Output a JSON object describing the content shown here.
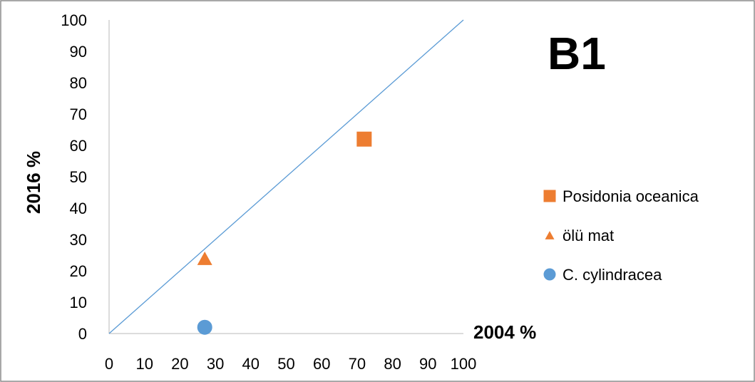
{
  "chart_data": {
    "type": "scatter",
    "title": "B1",
    "xlabel": "2004 %",
    "ylabel": "2016 %",
    "xlim": [
      0,
      100
    ],
    "ylim": [
      0,
      100
    ],
    "x_ticks": [
      "0",
      "10",
      "20",
      "30",
      "40",
      "50",
      "60",
      "70",
      "80",
      "90",
      "100"
    ],
    "y_ticks": [
      "0",
      "10",
      "20",
      "30",
      "40",
      "50",
      "60",
      "70",
      "80",
      "90",
      "100"
    ],
    "grid": false,
    "legend_position": "right",
    "reference_line": {
      "from": [
        0,
        0
      ],
      "to": [
        100,
        100
      ],
      "color": "#5B9BD5"
    },
    "series": [
      {
        "name": "Posidonia oceanica",
        "marker": "square",
        "color": "#ED7D31",
        "points": [
          {
            "x": 72,
            "y": 62
          }
        ]
      },
      {
        "name": "ölü mat",
        "marker": "triangle",
        "color": "#ED7D31",
        "points": [
          {
            "x": 27,
            "y": 24
          }
        ]
      },
      {
        "name": "C. cylindracea",
        "marker": "circle",
        "color": "#5B9BD5",
        "points": [
          {
            "x": 27,
            "y": 2
          }
        ]
      }
    ]
  }
}
